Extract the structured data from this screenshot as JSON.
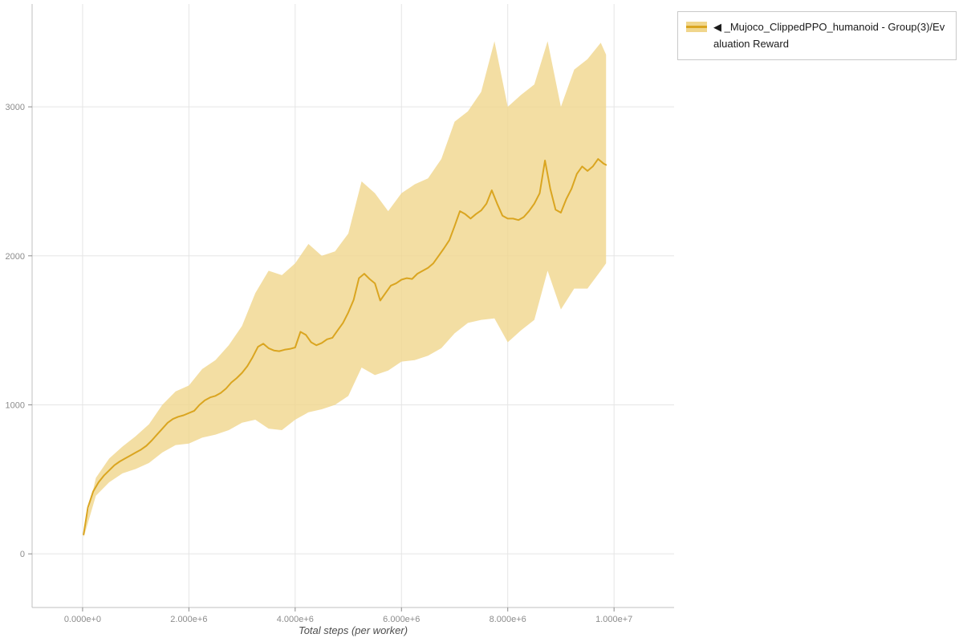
{
  "legend": {
    "items": [
      {
        "label": "◀ _Mujoco_ClippedPPO_humanoid - Group(3)/Evaluation Reward"
      }
    ]
  },
  "chart_data": {
    "type": "line",
    "title": "",
    "xlabel": "Total steps (per worker)",
    "ylabel": "",
    "grid": true,
    "legend_position": "top-right",
    "xlim": [
      -950000,
      11130000
    ],
    "ylim": [
      -360,
      3690
    ],
    "x_ticks": [
      0,
      2000000,
      4000000,
      6000000,
      8000000,
      10000000
    ],
    "x_tick_labels": [
      "0.000e+0",
      "2.000e+6",
      "4.000e+6",
      "6.000e+6",
      "8.000e+6",
      "1.000e+7"
    ],
    "y_ticks": [
      0,
      1000,
      2000,
      3000
    ],
    "y_tick_labels": [
      "0",
      "1000",
      "2000",
      "3000"
    ],
    "colors": {
      "line": "#DAA520",
      "band": "#f0d68c",
      "grid": "#e5e5e5",
      "axis": "#bfbfbf",
      "tick_label": "#8c8c8c"
    },
    "series": [
      {
        "name": "_Mujoco_ClippedPPO_humanoid - Group(3)/Evaluation Reward",
        "color": "#DAA520",
        "band_color": "#f0d68c",
        "x": [
          20000,
          100000,
          200000,
          300000,
          400000,
          500000,
          600000,
          700000,
          800000,
          900000,
          1000000,
          1100000,
          1200000,
          1300000,
          1400000,
          1500000,
          1600000,
          1700000,
          1800000,
          1900000,
          2000000,
          2100000,
          2200000,
          2300000,
          2400000,
          2500000,
          2600000,
          2700000,
          2800000,
          2900000,
          3000000,
          3100000,
          3200000,
          3300000,
          3400000,
          3500000,
          3600000,
          3700000,
          3800000,
          3900000,
          4000000,
          4100000,
          4200000,
          4300000,
          4400000,
          4500000,
          4600000,
          4700000,
          4800000,
          4900000,
          5000000,
          5100000,
          5200000,
          5300000,
          5400000,
          5500000,
          5600000,
          5700000,
          5800000,
          5900000,
          6000000,
          6100000,
          6200000,
          6300000,
          6400000,
          6500000,
          6600000,
          6700000,
          6800000,
          6900000,
          7000000,
          7100000,
          7200000,
          7300000,
          7400000,
          7500000,
          7600000,
          7700000,
          7800000,
          7900000,
          8000000,
          8100000,
          8200000,
          8300000,
          8400000,
          8500000,
          8600000,
          8700000,
          8800000,
          8900000,
          9000000,
          9100000,
          9200000,
          9300000,
          9400000,
          9500000,
          9600000,
          9700000,
          9800000,
          9850000
        ],
        "mean": [
          130,
          310,
          420,
          480,
          525,
          560,
          595,
          620,
          640,
          660,
          680,
          700,
          725,
          760,
          800,
          840,
          880,
          905,
          920,
          930,
          945,
          960,
          1000,
          1030,
          1050,
          1060,
          1080,
          1110,
          1150,
          1180,
          1215,
          1260,
          1320,
          1390,
          1410,
          1380,
          1365,
          1360,
          1370,
          1375,
          1385,
          1490,
          1470,
          1420,
          1400,
          1415,
          1440,
          1450,
          1500,
          1550,
          1620,
          1705,
          1850,
          1880,
          1845,
          1815,
          1700,
          1750,
          1800,
          1815,
          1840,
          1850,
          1845,
          1880,
          1900,
          1920,
          1950,
          2000,
          2050,
          2105,
          2200,
          2300,
          2280,
          2250,
          2280,
          2305,
          2350,
          2440,
          2350,
          2270,
          2250,
          2250,
          2240,
          2260,
          2300,
          2350,
          2420,
          2640,
          2450,
          2310,
          2290,
          2380,
          2450,
          2550,
          2600,
          2570,
          2600,
          2650,
          2620,
          2610
        ],
        "band_x": [
          20000,
          250000,
          500000,
          750000,
          1000000,
          1250000,
          1500000,
          1750000,
          2000000,
          2250000,
          2500000,
          2750000,
          3000000,
          3250000,
          3500000,
          3750000,
          4000000,
          4250000,
          4500000,
          4750000,
          5000000,
          5250000,
          5500000,
          5750000,
          6000000,
          6250000,
          6500000,
          6750000,
          7000000,
          7250000,
          7500000,
          7750000,
          8000000,
          8250000,
          8500000,
          8750000,
          9000000,
          9250000,
          9500000,
          9750000,
          9850000
        ],
        "band_lower": [
          110,
          390,
          480,
          540,
          570,
          610,
          680,
          730,
          740,
          780,
          800,
          830,
          880,
          900,
          840,
          830,
          900,
          950,
          970,
          1000,
          1060,
          1250,
          1200,
          1230,
          1290,
          1300,
          1330,
          1380,
          1480,
          1550,
          1570,
          1580,
          1420,
          1500,
          1570,
          1900,
          1640,
          1780,
          1780,
          1900,
          1950
        ],
        "band_upper": [
          150,
          510,
          640,
          720,
          790,
          870,
          1000,
          1090,
          1130,
          1240,
          1300,
          1400,
          1530,
          1750,
          1900,
          1870,
          1950,
          2080,
          2000,
          2030,
          2150,
          2500,
          2420,
          2300,
          2420,
          2480,
          2520,
          2650,
          2900,
          2970,
          3100,
          3440,
          3000,
          3080,
          3150,
          3440,
          3000,
          3250,
          3320,
          3430,
          3350
        ]
      }
    ]
  }
}
